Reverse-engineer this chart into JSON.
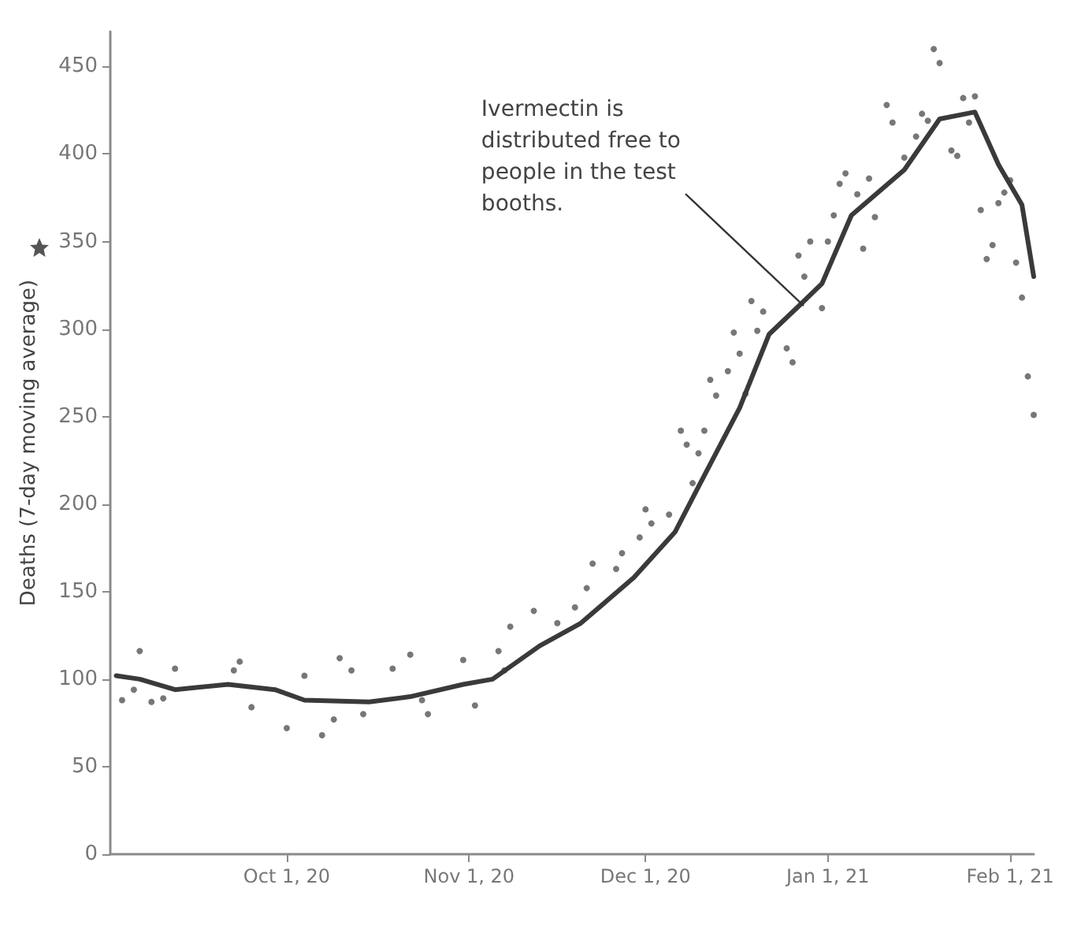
{
  "chart_data": {
    "type": "line",
    "ylabel": "Deaths (7-day moving average)",
    "xlim": [
      "2020-09-01",
      "2021-02-05"
    ],
    "ylim": [
      0,
      470
    ],
    "xticks": [
      {
        "value": "2020-10-01",
        "label": "Oct 1, 20"
      },
      {
        "value": "2020-11-01",
        "label": "Nov 1, 20"
      },
      {
        "value": "2020-12-01",
        "label": "Dec 1, 20"
      },
      {
        "value": "2021-01-01",
        "label": "Jan 1, 21"
      },
      {
        "value": "2021-02-01",
        "label": "Feb 1, 21"
      }
    ],
    "yticks": [
      0,
      50,
      100,
      150,
      200,
      250,
      300,
      350,
      400,
      450
    ],
    "grid": false,
    "series": [
      {
        "type": "scatter",
        "color": "#555555",
        "marker": "circle",
        "x": [
          "2020-09-03",
          "2020-09-05",
          "2020-09-06",
          "2020-09-08",
          "2020-09-10",
          "2020-09-12",
          "2020-09-22",
          "2020-09-23",
          "2020-09-25",
          "2020-10-01",
          "2020-10-04",
          "2020-10-07",
          "2020-10-09",
          "2020-10-10",
          "2020-10-12",
          "2020-10-14",
          "2020-10-19",
          "2020-10-22",
          "2020-10-24",
          "2020-10-25",
          "2020-10-31",
          "2020-11-02",
          "2020-11-06",
          "2020-11-07",
          "2020-11-08",
          "2020-11-12",
          "2020-11-16",
          "2020-11-19",
          "2020-11-21",
          "2020-11-22",
          "2020-11-26",
          "2020-11-27",
          "2020-11-30",
          "2020-12-01",
          "2020-12-02",
          "2020-12-05",
          "2020-12-07",
          "2020-12-08",
          "2020-12-09",
          "2020-12-10",
          "2020-12-11",
          "2020-12-12",
          "2020-12-13",
          "2020-12-15",
          "2020-12-16",
          "2020-12-17",
          "2020-12-18",
          "2020-12-19",
          "2020-12-20",
          "2020-12-21",
          "2020-12-25",
          "2020-12-26",
          "2020-12-27",
          "2020-12-28",
          "2020-12-29",
          "2020-12-31",
          "2021-01-01",
          "2021-01-02",
          "2021-01-03",
          "2021-01-04",
          "2021-01-06",
          "2021-01-07",
          "2021-01-08",
          "2021-01-09",
          "2021-01-11",
          "2021-01-12",
          "2021-01-14",
          "2021-01-16",
          "2021-01-17",
          "2021-01-18",
          "2021-01-19",
          "2021-01-20",
          "2021-01-22",
          "2021-01-23",
          "2021-01-24",
          "2021-01-25",
          "2021-01-26",
          "2021-01-27",
          "2021-01-28",
          "2021-01-29",
          "2021-01-30",
          "2021-01-31",
          "2021-02-01",
          "2021-02-02",
          "2021-02-03",
          "2021-02-04",
          "2021-02-05"
        ],
        "values": [
          88,
          94,
          116,
          87,
          89,
          106,
          105,
          110,
          84,
          72,
          102,
          68,
          77,
          112,
          105,
          80,
          106,
          114,
          88,
          80,
          111,
          85,
          116,
          105,
          130,
          139,
          132,
          141,
          152,
          166,
          163,
          172,
          181,
          197,
          189,
          194,
          242,
          234,
          212,
          229,
          242,
          271,
          262,
          276,
          298,
          286,
          263,
          316,
          299,
          310,
          289,
          281,
          342,
          330,
          350,
          312,
          350,
          365,
          383,
          389,
          377,
          346,
          386,
          364,
          428,
          418,
          398,
          410,
          423,
          419,
          460,
          452,
          402,
          399,
          432,
          418,
          433,
          368,
          340,
          348,
          372,
          378,
          385,
          338,
          318,
          273,
          251
        ]
      },
      {
        "color": "#3a3a3a",
        "marker": "none",
        "x": [
          "2020-09-02",
          "2020-09-06",
          "2020-09-12",
          "2020-09-21",
          "2020-09-29",
          "2020-10-04",
          "2020-10-15",
          "2020-10-22",
          "2020-10-31",
          "2020-11-05",
          "2020-11-13",
          "2020-11-20",
          "2020-11-29",
          "2020-12-06",
          "2020-12-10",
          "2020-12-17",
          "2020-12-22",
          "2020-12-27",
          "2020-12-31",
          "2021-01-05",
          "2021-01-14",
          "2021-01-20",
          "2021-01-26",
          "2021-01-30",
          "2021-02-03",
          "2021-02-05"
        ],
        "values": [
          102,
          100,
          94,
          97,
          94,
          88,
          87,
          90,
          97,
          100,
          119,
          132,
          158,
          184,
          210,
          255,
          297,
          313,
          326,
          365,
          391,
          420,
          424,
          394,
          371,
          330
        ]
      }
    ],
    "annotations": [
      {
        "text": "Ivermectin is\ndistributed free to\npeople in the test\nbooths.",
        "x": "2020-12-28",
        "y": 313
      }
    ]
  }
}
